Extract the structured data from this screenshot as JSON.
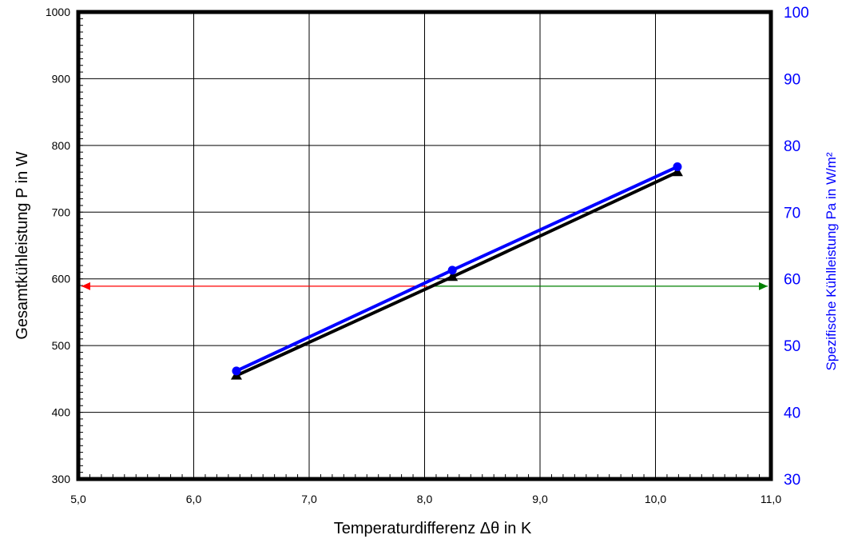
{
  "chart_data": {
    "type": "line",
    "title": "",
    "xlabel": "Temperaturdifferenz Δθ in K",
    "ylabel": "Gesamtkühleistung  P  in W",
    "y2label": "Spezifische Kühlleistung Pa in W/m²",
    "xlim": [
      5.0,
      11.0
    ],
    "ylim": [
      300,
      1000
    ],
    "y2lim": [
      30,
      100
    ],
    "x_ticks": [
      5.0,
      6.0,
      7.0,
      8.0,
      9.0,
      10.0,
      11.0
    ],
    "x_tick_labels": [
      "5,0",
      "6,0",
      "7,0",
      "8,0",
      "9,0",
      "10,0",
      "11,0"
    ],
    "y_ticks": [
      300,
      400,
      500,
      600,
      700,
      800,
      900,
      1000
    ],
    "y_tick_labels": [
      "300",
      "400",
      "500",
      "600",
      "700",
      "800",
      "900",
      "1000"
    ],
    "y2_ticks": [
      30,
      40,
      50,
      60,
      70,
      80,
      90,
      100
    ],
    "y2_tick_labels": [
      "30",
      "40",
      "50",
      "60",
      "70",
      "80",
      "90",
      "100"
    ],
    "grid": true,
    "legend": "none",
    "series": [
      {
        "axis": "left",
        "marker": "triangle",
        "color": "#000000",
        "x": [
          6.37,
          8.24,
          10.19
        ],
        "y": [
          455,
          603,
          760
        ]
      },
      {
        "axis": "right",
        "marker": "circle",
        "color": "#0000ff",
        "x": [
          6.37,
          8.24,
          10.19
        ],
        "y": [
          46.2,
          61.3,
          76.8
        ]
      }
    ],
    "arrows": [
      {
        "color": "#ff0000",
        "direction": "left",
        "axis": "left",
        "y": 589,
        "x": [
          5.0,
          8.05
        ]
      },
      {
        "color": "#008000",
        "direction": "right",
        "axis": "right",
        "y": 58.9,
        "x": [
          8.05,
          11.0
        ]
      }
    ]
  },
  "colors": {
    "left_axis": "#000000",
    "right_axis": "#0000ff",
    "grid": "#000000",
    "frame": "#000000"
  }
}
